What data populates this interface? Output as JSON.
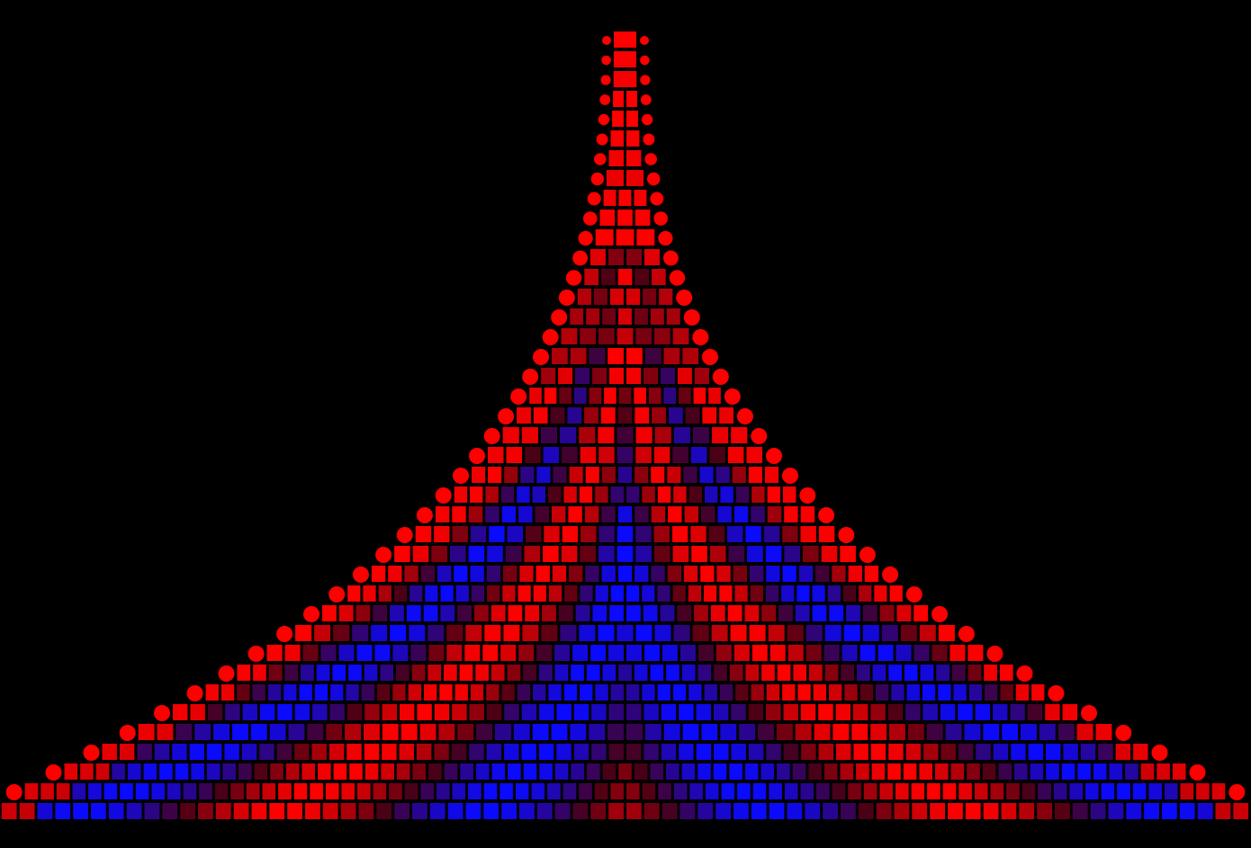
{
  "artwork": {
    "background": "#000000",
    "colors": {
      "outer": "#ff0000",
      "mid": "#4a0015",
      "inner": "#0a0aff"
    },
    "shape": "triangular mosaic of rectangles bordered by circles",
    "text": ""
  }
}
